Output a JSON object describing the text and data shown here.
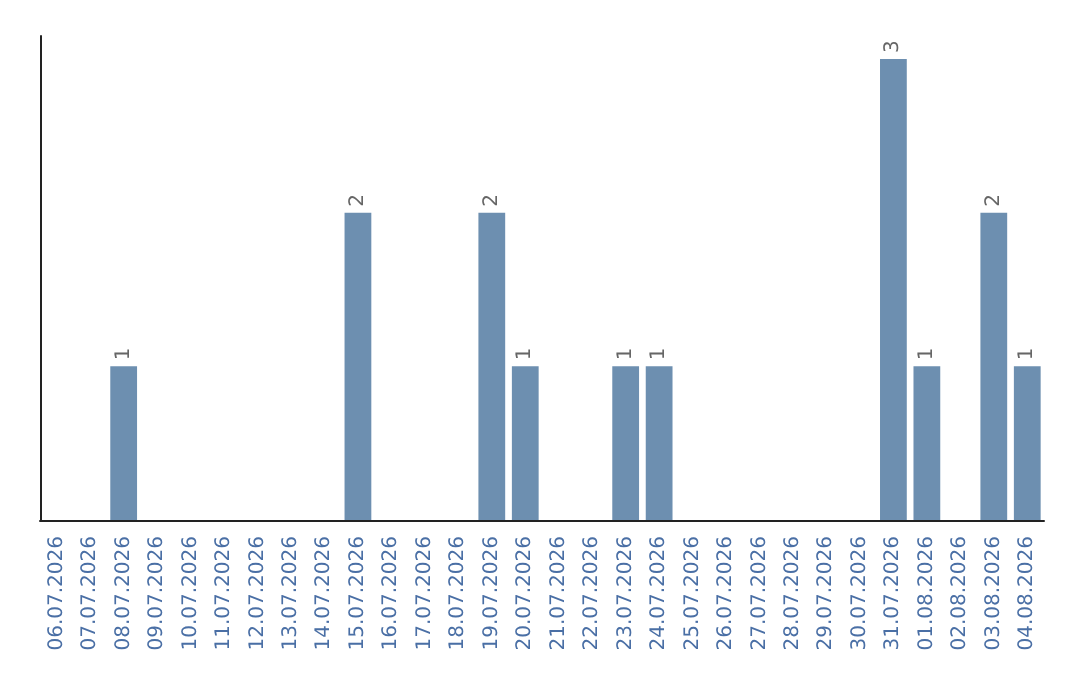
{
  "chart_data": {
    "type": "bar",
    "categories": [
      "06.07.2026",
      "07.07.2026",
      "08.07.2026",
      "09.07.2026",
      "10.07.2026",
      "11.07.2026",
      "12.07.2026",
      "13.07.2026",
      "14.07.2026",
      "15.07.2026",
      "16.07.2026",
      "17.07.2026",
      "18.07.2026",
      "19.07.2026",
      "20.07.2026",
      "21.07.2026",
      "22.07.2026",
      "23.07.2026",
      "24.07.2026",
      "25.07.2026",
      "26.07.2026",
      "27.07.2026",
      "28.07.2026",
      "29.07.2026",
      "30.07.2026",
      "31.07.2026",
      "01.08.2026",
      "02.08.2026",
      "03.08.2026",
      "04.08.2026"
    ],
    "values": [
      0,
      0,
      1,
      0,
      0,
      0,
      0,
      0,
      0,
      2,
      0,
      0,
      0,
      2,
      1,
      0,
      0,
      1,
      1,
      0,
      0,
      0,
      0,
      0,
      0,
      3,
      1,
      0,
      2,
      1
    ],
    "value_labels": [
      null,
      null,
      "1",
      null,
      null,
      null,
      null,
      null,
      null,
      "2",
      null,
      null,
      null,
      "2",
      "1",
      null,
      null,
      "1",
      "1",
      null,
      null,
      null,
      null,
      null,
      null,
      "3",
      "1",
      null,
      "2",
      "1"
    ],
    "color": "#6d8fb0"
  }
}
